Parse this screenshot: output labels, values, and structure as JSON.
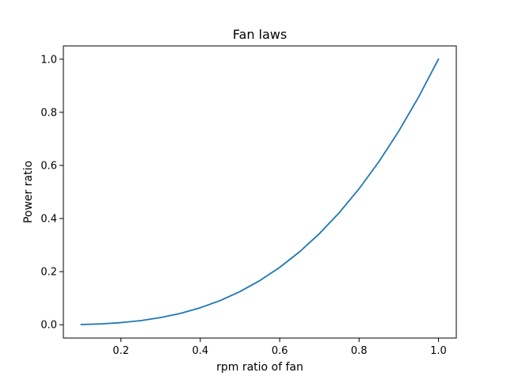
{
  "chart_data": {
    "type": "line",
    "title": "Fan laws",
    "xlabel": "rpm ratio of fan",
    "ylabel": "Power ratio",
    "xlim": [
      0.055,
      1.045
    ],
    "ylim": [
      -0.05,
      1.05
    ],
    "xticks": [
      0.2,
      0.4,
      0.6,
      0.8,
      1.0
    ],
    "xtick_labels": [
      "0.2",
      "0.4",
      "0.6",
      "0.8",
      "1.0"
    ],
    "yticks": [
      0.0,
      0.2,
      0.4,
      0.6,
      0.8,
      1.0
    ],
    "ytick_labels": [
      "0.0",
      "0.2",
      "0.4",
      "0.6",
      "0.8",
      "1.0"
    ],
    "grid": false,
    "series": [
      {
        "color": "#1f77b4",
        "x": [
          0.1,
          0.15,
          0.2,
          0.25,
          0.3,
          0.35,
          0.4,
          0.45,
          0.5,
          0.55,
          0.6,
          0.65,
          0.7,
          0.75,
          0.8,
          0.85,
          0.9,
          0.95,
          1.0
        ],
        "y": [
          0.001,
          0.0034,
          0.008,
          0.0156,
          0.027,
          0.0429,
          0.064,
          0.0911,
          0.125,
          0.1664,
          0.216,
          0.2746,
          0.343,
          0.4219,
          0.512,
          0.6141,
          0.729,
          0.8574,
          1.0
        ]
      }
    ]
  }
}
